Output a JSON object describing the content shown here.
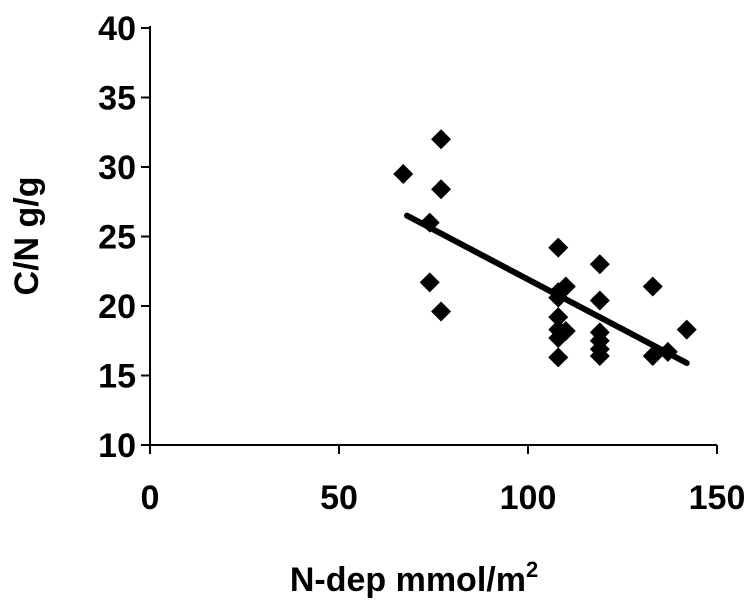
{
  "chart_data": {
    "type": "scatter",
    "title": "",
    "xlabel": "N-dep mmol/m",
    "xlabel_superscript": "2",
    "ylabel": "C/N g/g",
    "xlim": [
      0,
      150
    ],
    "ylim": [
      10,
      40
    ],
    "xticks": [
      0,
      50,
      100,
      150
    ],
    "yticks": [
      10,
      15,
      20,
      25,
      30,
      35,
      40
    ],
    "grid": false,
    "legend": "none",
    "marker": "diamond",
    "marker_color": "#000000",
    "series": [
      {
        "points": [
          {
            "x": 67,
            "y": 29.5
          },
          {
            "x": 74,
            "y": 26.0
          },
          {
            "x": 74,
            "y": 21.7
          },
          {
            "x": 77,
            "y": 32.0
          },
          {
            "x": 77,
            "y": 28.4
          },
          {
            "x": 77,
            "y": 19.6
          },
          {
            "x": 108,
            "y": 24.2
          },
          {
            "x": 108,
            "y": 21.0
          },
          {
            "x": 108,
            "y": 20.6
          },
          {
            "x": 108,
            "y": 19.2
          },
          {
            "x": 108,
            "y": 18.3
          },
          {
            "x": 108,
            "y": 17.7
          },
          {
            "x": 108,
            "y": 16.3
          },
          {
            "x": 110,
            "y": 21.4
          },
          {
            "x": 110,
            "y": 18.2
          },
          {
            "x": 119,
            "y": 23.0
          },
          {
            "x": 119,
            "y": 20.4
          },
          {
            "x": 119,
            "y": 18.1
          },
          {
            "x": 119,
            "y": 17.5
          },
          {
            "x": 119,
            "y": 16.9
          },
          {
            "x": 119,
            "y": 16.4
          },
          {
            "x": 133,
            "y": 21.4
          },
          {
            "x": 133,
            "y": 16.4
          },
          {
            "x": 137,
            "y": 16.7
          },
          {
            "x": 142,
            "y": 18.3
          }
        ]
      }
    ],
    "trendline": {
      "type": "linear",
      "points": [
        {
          "x": 68,
          "y": 26.5
        },
        {
          "x": 142,
          "y": 15.9
        }
      ]
    }
  }
}
